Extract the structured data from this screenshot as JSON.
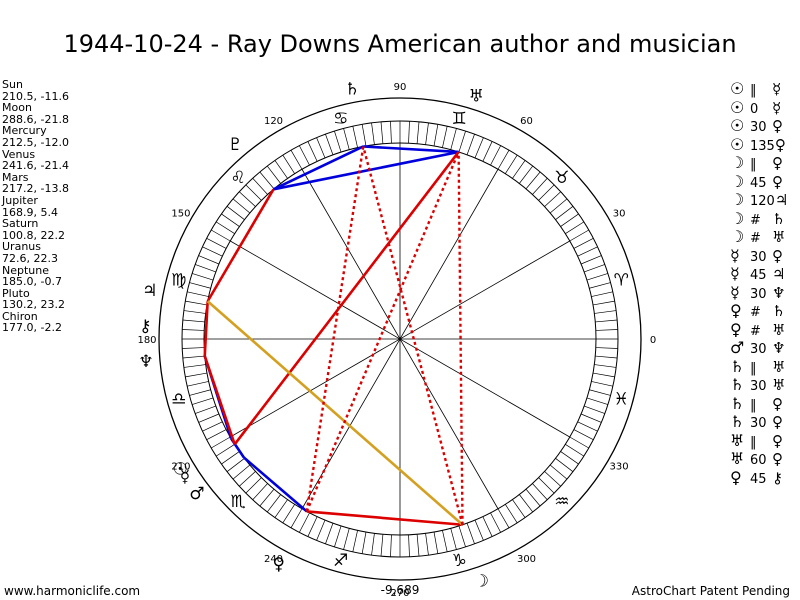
{
  "title": "1944-10-24 - Ray Downs American author and musician",
  "planets": [
    {
      "name": "Sun",
      "coords": "210.5, -11.6"
    },
    {
      "name": "Moon",
      "coords": "288.6, -21.8"
    },
    {
      "name": "Mercury",
      "coords": "212.5, -12.0"
    },
    {
      "name": "Venus",
      "coords": "241.6, -21.4"
    },
    {
      "name": "Mars",
      "coords": "217.2, -13.8"
    },
    {
      "name": "Jupiter",
      "coords": "168.9, 5.4"
    },
    {
      "name": "Saturn",
      "coords": "100.8, 22.2"
    },
    {
      "name": "Uranus",
      "coords": "72.6, 22.3"
    },
    {
      "name": "Neptune",
      "coords": "185.0, -0.7"
    },
    {
      "name": "Pluto",
      "coords": "130.2, 23.2"
    },
    {
      "name": "Chiron",
      "coords": "177.0, -2.2"
    }
  ],
  "aspects": [
    {
      "p1": "☉",
      "aspect": "‖",
      "p2": "☿"
    },
    {
      "p1": "☉",
      "aspect": "0",
      "p2": "☿"
    },
    {
      "p1": "☉",
      "aspect": "30",
      "p2": "♀"
    },
    {
      "p1": "☉",
      "aspect": "135",
      "p2": "♀"
    },
    {
      "p1": "☽",
      "aspect": "‖",
      "p2": "♀"
    },
    {
      "p1": "☽",
      "aspect": "45",
      "p2": "♀"
    },
    {
      "p1": "☽",
      "aspect": "120",
      "p2": "♃"
    },
    {
      "p1": "☽",
      "aspect": "#",
      "p2": "♄"
    },
    {
      "p1": "☽",
      "aspect": "#",
      "p2": "♅"
    },
    {
      "p1": "☿",
      "aspect": "30",
      "p2": "♀"
    },
    {
      "p1": "☿",
      "aspect": "45",
      "p2": "♃"
    },
    {
      "p1": "☿",
      "aspect": "30",
      "p2": "♆"
    },
    {
      "p1": "♀",
      "aspect": "#",
      "p2": "♄"
    },
    {
      "p1": "♀",
      "aspect": "#",
      "p2": "♅"
    },
    {
      "p1": "♂",
      "aspect": "30",
      "p2": "♆"
    },
    {
      "p1": "♄",
      "aspect": "‖",
      "p2": "♅"
    },
    {
      "p1": "♄",
      "aspect": "30",
      "p2": "♅"
    },
    {
      "p1": "♄",
      "aspect": "‖",
      "p2": "♀"
    },
    {
      "p1": "♄",
      "aspect": "30",
      "p2": "♀"
    },
    {
      "p1": "♅",
      "aspect": "‖",
      "p2": "♀"
    },
    {
      "p1": "♅",
      "aspect": "60",
      "p2": "♀"
    },
    {
      "p1": "♀",
      "aspect": "45",
      "p2": "⚷"
    }
  ],
  "wheel": {
    "degree_labels": [
      "0",
      "30",
      "60",
      "90",
      "120",
      "150",
      "180",
      "210",
      "240",
      "270",
      "300",
      "330"
    ],
    "bottom_value": "-9,689",
    "sign_glyphs": [
      "♈",
      "♉",
      "♊",
      "♋",
      "♌",
      "♍",
      "♎",
      "♏",
      "♐",
      "♑",
      "♒",
      "♓"
    ],
    "planet_glyphs": {
      "Sun": "☉",
      "Moon": "☽",
      "Mercury": "☿",
      "Venus": "♀",
      "Mars": "♂",
      "Jupiter": "♃",
      "Saturn": "♄",
      "Uranus": "♅",
      "Neptune": "♆",
      "Pluto": "♇",
      "Chiron": "⚷"
    },
    "colors": {
      "blue": "#0000dd",
      "red": "#dd0000",
      "orange": "#d4a020",
      "black": "#000000"
    }
  },
  "footer": {
    "left": "www.harmoniclife.com",
    "right": "AstroChart Patent Pending"
  }
}
